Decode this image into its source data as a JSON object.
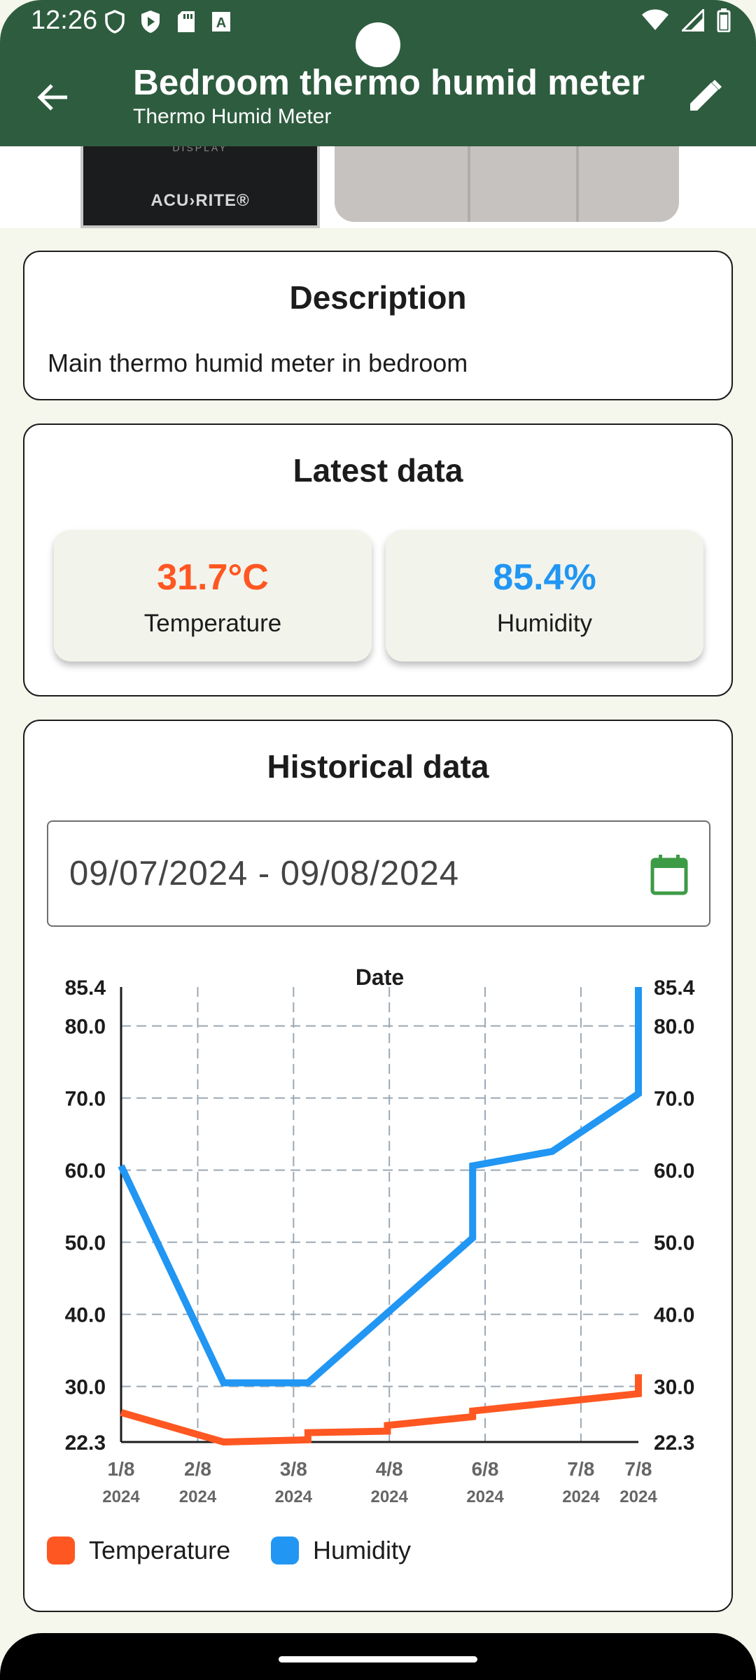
{
  "status_bar": {
    "time": "12:26"
  },
  "header": {
    "title": "Bedroom thermo humid meter",
    "subtitle": "Thermo Humid Meter"
  },
  "photo": {
    "display_text": "DISPLAY",
    "brand": "ACU›RITE®"
  },
  "description": {
    "title": "Description",
    "text": "Main thermo humid meter in bedroom"
  },
  "latest": {
    "title": "Latest data",
    "temperature": {
      "value": "31.7°C",
      "label": "Temperature",
      "color": "#ff5722"
    },
    "humidity": {
      "value": "85.4%",
      "label": "Humidity",
      "color": "#2196f3"
    }
  },
  "historical": {
    "title": "Historical data",
    "date_range": "09/07/2024 - 09/08/2024",
    "legend": [
      {
        "name": "Temperature",
        "color": "#ff5722"
      },
      {
        "name": "Humidity",
        "color": "#2196f3"
      }
    ]
  },
  "chart_data": {
    "type": "line",
    "title": "Date",
    "x_ticks": [
      {
        "x": 0,
        "line1": "1/8",
        "line2": "2024"
      },
      {
        "x": 0.8,
        "line1": "2/8",
        "line2": "2024"
      },
      {
        "x": 1.8,
        "line1": "3/8",
        "line2": "2024"
      },
      {
        "x": 2.8,
        "line1": "4/8",
        "line2": "2024"
      },
      {
        "x": 3.8,
        "line1": "6/8",
        "line2": "2024"
      },
      {
        "x": 4.8,
        "line1": "7/8",
        "line2": "2024"
      },
      {
        "x": 5.4,
        "line1": "7/8",
        "line2": "2024"
      }
    ],
    "xlim": [
      0,
      5.4
    ],
    "ylim": [
      22.3,
      85.4
    ],
    "y_ticks": [
      "22.3",
      "30.0",
      "40.0",
      "50.0",
      "60.0",
      "70.0",
      "80.0",
      "85.4"
    ],
    "grid": true,
    "series": [
      {
        "name": "Temperature",
        "color": "#ff5722",
        "points": [
          [
            0,
            26.4
          ],
          [
            1.07,
            22.3
          ],
          [
            1.95,
            22.6
          ],
          [
            1.95,
            23.6
          ],
          [
            2.78,
            23.8
          ],
          [
            2.78,
            24.6
          ],
          [
            3.67,
            25.8
          ],
          [
            3.67,
            26.6
          ],
          [
            5.4,
            29.0
          ],
          [
            5.4,
            31.7
          ]
        ]
      },
      {
        "name": "Humidity",
        "color": "#2196f3",
        "points": [
          [
            0,
            60.6
          ],
          [
            1.07,
            30.5
          ],
          [
            1.95,
            30.5
          ],
          [
            3.67,
            50.6
          ],
          [
            3.67,
            60.6
          ],
          [
            4.5,
            62.6
          ],
          [
            5.4,
            70.6
          ],
          [
            5.4,
            85.4
          ]
        ]
      }
    ]
  }
}
